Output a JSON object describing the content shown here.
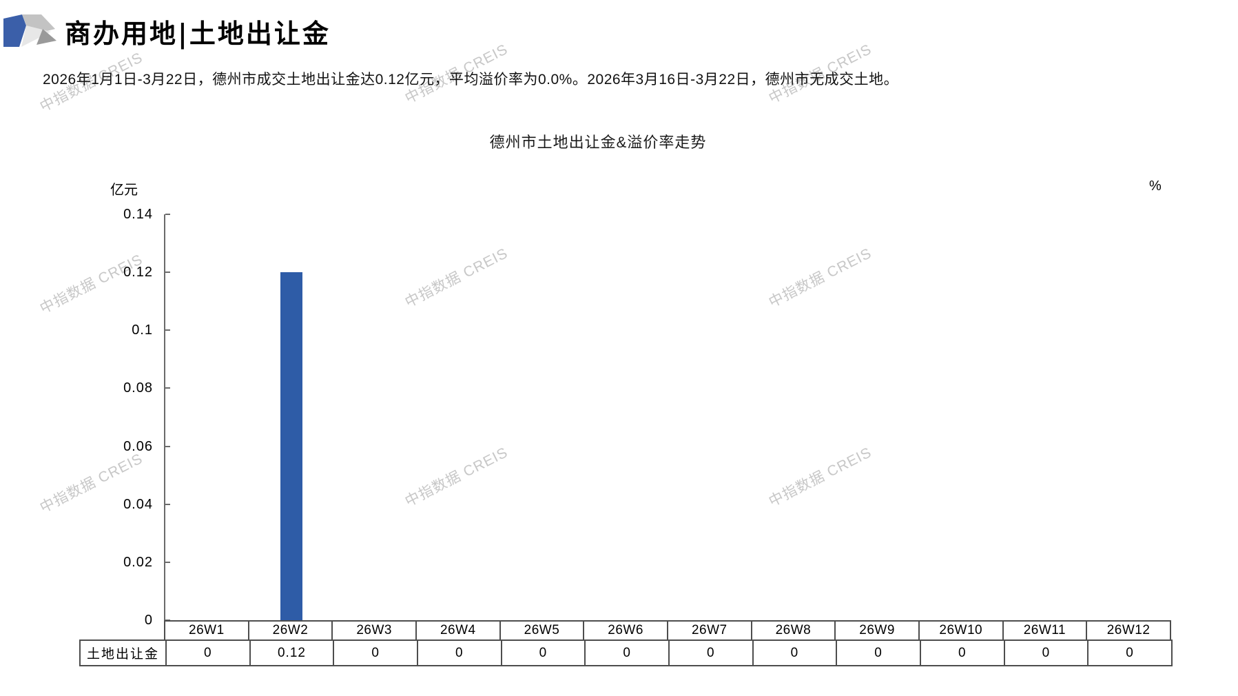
{
  "page": {
    "title": "商办用地|土地出让金",
    "summary": "2026年1月1日-3月22日，德州市成交土地出让金达0.12亿元，平均溢价率为0.0%。2026年3月16日-3月22日，德州市无成交土地。",
    "watermark_text": "中指数据 CREIS"
  },
  "chart_data": {
    "type": "bar",
    "title": "德州市土地出让金&溢价率走势",
    "left_axis_unit": "亿元",
    "right_axis_unit": "%",
    "ylim": [
      0,
      0.14
    ],
    "y_ticks": [
      "0.14",
      "0.12",
      "0.1",
      "0.08",
      "0.06",
      "0.04",
      "0.02",
      "0"
    ],
    "grid": false,
    "legend": false,
    "categories": [
      "26W1",
      "26W2",
      "26W3",
      "26W4",
      "26W5",
      "26W6",
      "26W7",
      "26W8",
      "26W9",
      "26W10",
      "26W11",
      "26W12"
    ],
    "series": [
      {
        "name": "土地出让金",
        "color": "#2e5ca7",
        "values": [
          0,
          0.12,
          0,
          0,
          0,
          0,
          0,
          0,
          0,
          0,
          0,
          0
        ]
      }
    ]
  }
}
